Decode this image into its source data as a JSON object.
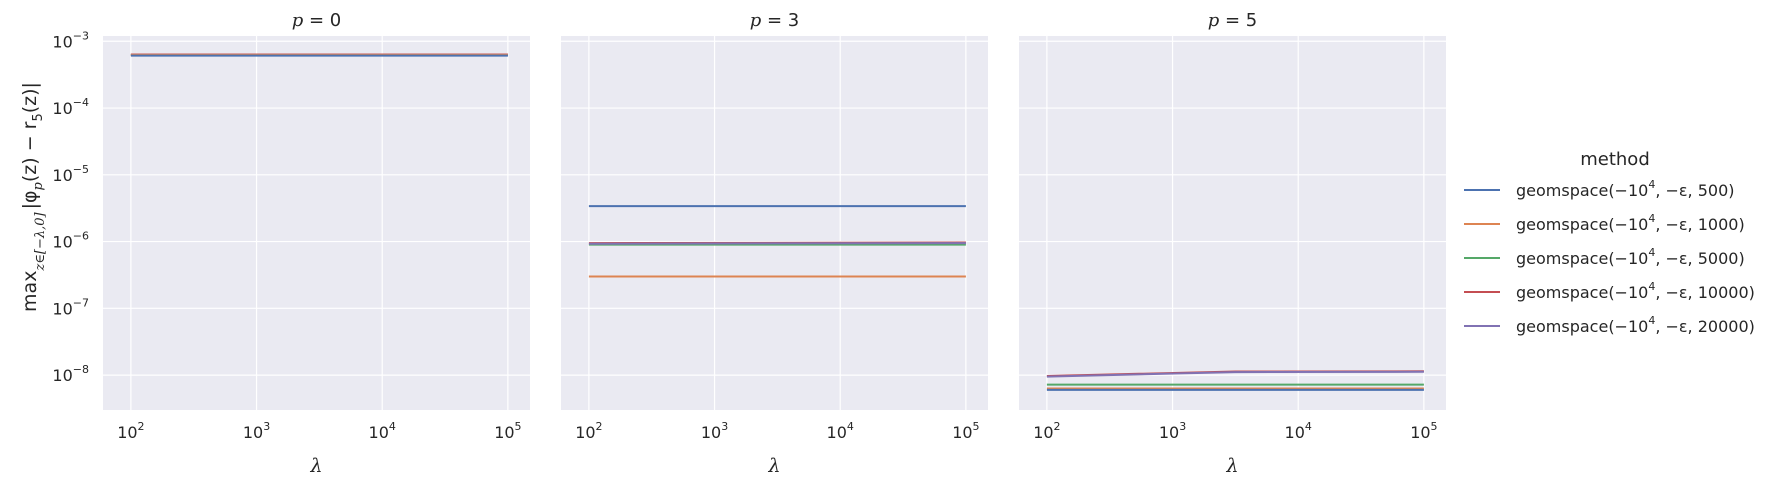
{
  "chart_data": {
    "type": "line",
    "x_scale": "log",
    "y_scale": "log",
    "xlim": [
      60,
      150000
    ],
    "ylim": [
      3e-09,
      0.0012
    ],
    "x_ticks": [
      100,
      1000,
      10000,
      100000
    ],
    "x_tick_labels": [
      {
        "base": "10",
        "exp": "2"
      },
      {
        "base": "10",
        "exp": "3"
      },
      {
        "base": "10",
        "exp": "4"
      },
      {
        "base": "10",
        "exp": "5"
      }
    ],
    "y_ticks": [
      1e-08,
      1e-07,
      1e-06,
      1e-05,
      0.0001,
      0.001
    ],
    "y_tick_labels": [
      {
        "base": "10",
        "exp": "−8"
      },
      {
        "base": "10",
        "exp": "−7"
      },
      {
        "base": "10",
        "exp": "−6"
      },
      {
        "base": "10",
        "exp": "−5"
      },
      {
        "base": "10",
        "exp": "−4"
      },
      {
        "base": "10",
        "exp": "−3"
      }
    ],
    "xlabel": "λ",
    "ylabel": "max_{z∈[−λ,0]} |φ_p(z) − r_5(z)|",
    "ylabel_main": "max",
    "ylabel_sub": "z∈[−λ,0]",
    "ylabel_expr": "|φ",
    "ylabel_expr_sub": "p",
    "ylabel_expr_rest": "(z) − r",
    "ylabel_expr_sub2": "5",
    "ylabel_expr_end": "(z)|",
    "grid": true,
    "legend": {
      "title": "method",
      "placement": "right",
      "entries": [
        {
          "label": "geomspace(−10",
          "exp": "4",
          "rest": ", −ε, 500)",
          "color": "#4c72b0"
        },
        {
          "label": "geomspace(−10",
          "exp": "4",
          "rest": ", −ε, 1000)",
          "color": "#dd8452"
        },
        {
          "label": "geomspace(−10",
          "exp": "4",
          "rest": ", −ε, 5000)",
          "color": "#55a868"
        },
        {
          "label": "geomspace(−10",
          "exp": "4",
          "rest": ", −ε, 10000)",
          "color": "#c44e52"
        },
        {
          "label": "geomspace(−10",
          "exp": "4",
          "rest": ", −ε, 20000)",
          "color": "#8172b3"
        }
      ]
    },
    "panels": [
      {
        "title": "p = 0",
        "title_var": "p",
        "title_rest": " = 0",
        "x": [
          100,
          100000
        ],
        "series": [
          {
            "color": "#8172b3",
            "x": [
              100,
              100000
            ],
            "y": [
              0.00063,
              0.00063
            ]
          },
          {
            "color": "#c44e52",
            "x": [
              100,
              100000
            ],
            "y": [
              0.000635,
              0.000635
            ]
          },
          {
            "color": "#55a868",
            "x": [
              100,
              100000
            ],
            "y": [
              0.00062,
              0.00062
            ]
          },
          {
            "color": "#dd8452",
            "x": [
              100,
              100000
            ],
            "y": [
              0.000625,
              0.000625
            ]
          },
          {
            "color": "#4c72b0",
            "x": [
              100,
              100000
            ],
            "y": [
              0.00061,
              0.00061
            ]
          }
        ]
      },
      {
        "title": "p = 3",
        "title_var": "p",
        "title_rest": " = 3",
        "series": [
          {
            "color": "#4c72b0",
            "x": [
              100,
              100000
            ],
            "y": [
              3.4e-06,
              3.4e-06
            ]
          },
          {
            "color": "#dd8452",
            "x": [
              100,
              100000
            ],
            "y": [
              3e-07,
              3e-07
            ]
          },
          {
            "color": "#55a868",
            "x": [
              100,
              100000
            ],
            "y": [
              9e-07,
              9e-07
            ]
          },
          {
            "color": "#c44e52",
            "x": [
              100,
              100000
            ],
            "y": [
              9.5e-07,
              9.7e-07
            ]
          },
          {
            "color": "#8172b3",
            "x": [
              100,
              100000
            ],
            "y": [
              9.3e-07,
              9.5e-07
            ]
          }
        ]
      },
      {
        "title": "p = 5",
        "title_var": "p",
        "title_rest": " = 5",
        "series": [
          {
            "color": "#dd8452",
            "x": [
              100,
              100000
            ],
            "y": [
              6.3e-09,
              6.3e-09
            ]
          },
          {
            "color": "#4c72b0",
            "x": [
              100,
              100000
            ],
            "y": [
              6e-09,
              6e-09
            ]
          },
          {
            "color": "#55a868",
            "x": [
              100,
              100000
            ],
            "y": [
              7.2e-09,
              7.2e-09
            ]
          },
          {
            "color": "#c44e52",
            "x": [
              100,
              3160,
              100000
            ],
            "y": [
              9.7e-09,
              1.13e-08,
              1.14e-08
            ]
          },
          {
            "color": "#8172b3",
            "x": [
              100,
              3160,
              100000
            ],
            "y": [
              9.5e-09,
              1.11e-08,
              1.12e-08
            ]
          }
        ]
      }
    ]
  }
}
